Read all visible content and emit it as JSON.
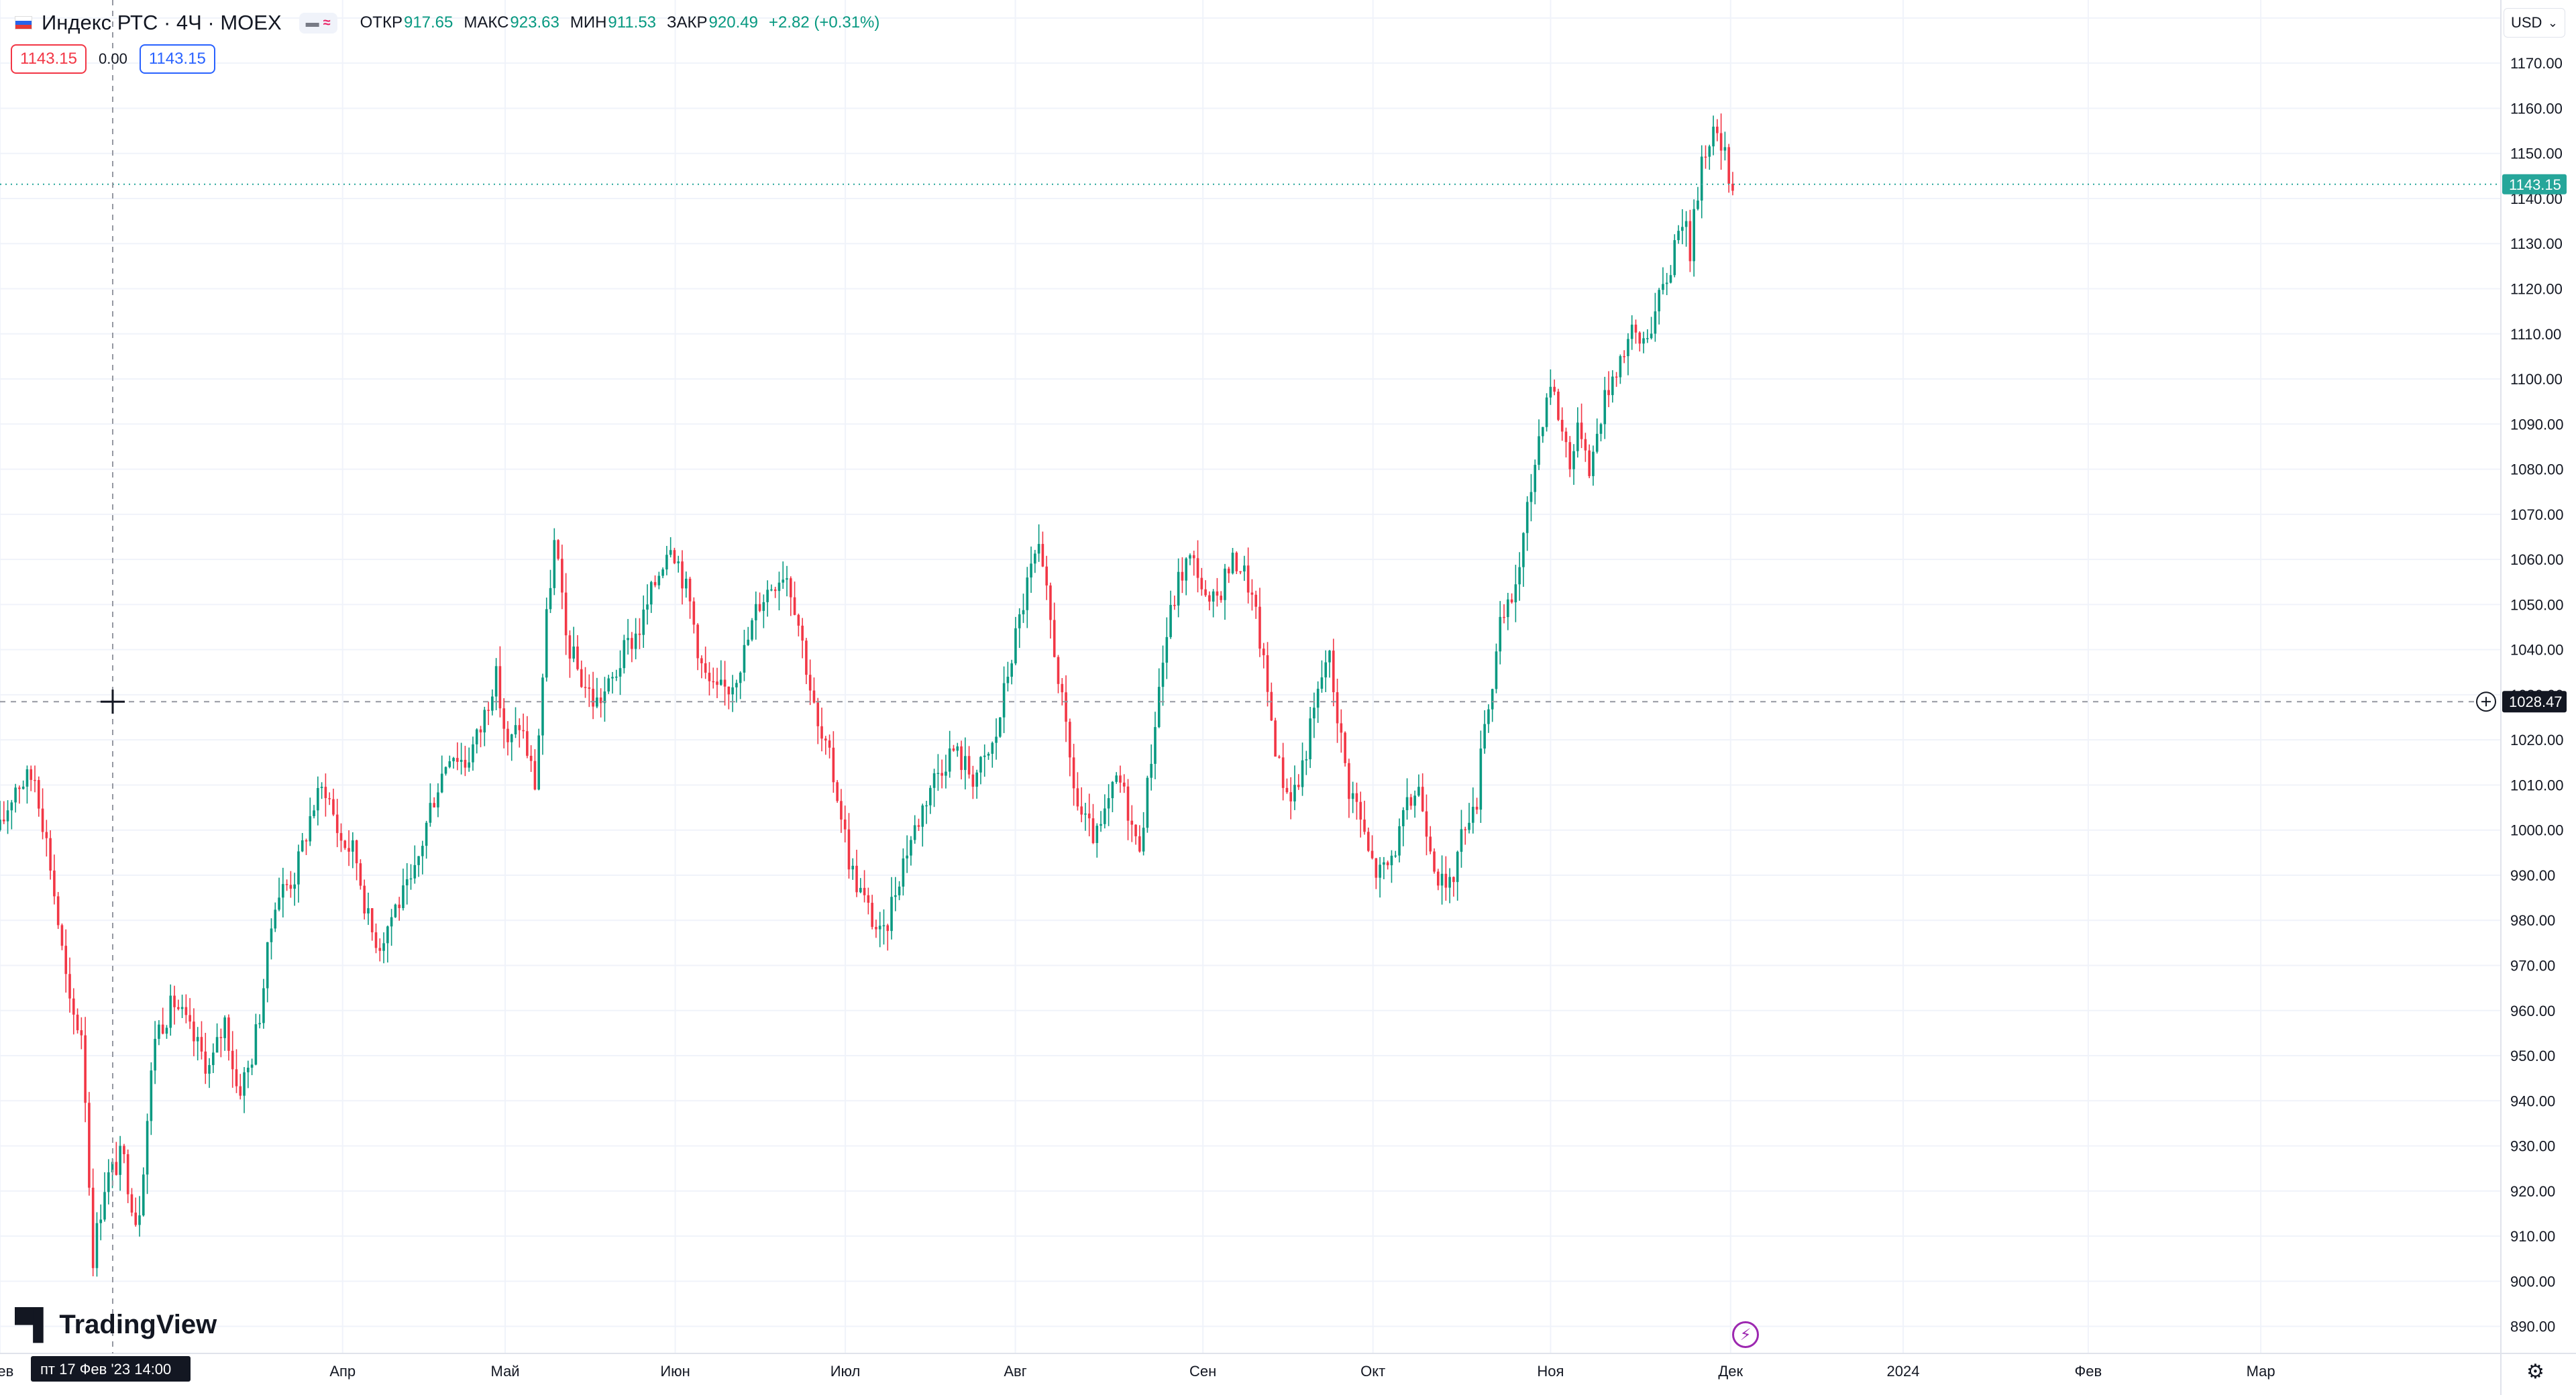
{
  "legend": {
    "symbol": "Индекс РТС · 4Ч · MOEX",
    "open_label": "ОТКР",
    "open": "917.65",
    "high_label": "МАКС",
    "high": "923.63",
    "low_label": "МИН",
    "low": "911.53",
    "close_label": "ЗАКР",
    "close": "920.49",
    "change": "+2.82 (+0.31%)"
  },
  "trade": {
    "sell": "1143.15",
    "spread": "0.00",
    "buy": "1143.15"
  },
  "currency": "USD",
  "brand": "TradingView",
  "crosshair": {
    "price_label": "1028.47",
    "time_label": "пт 17 Фев '23   14:00",
    "price": 1028.47
  },
  "last_price": {
    "label": "1143.15",
    "value": 1143.15
  },
  "colors": {
    "up": "#089981",
    "down": "#f23645",
    "grid": "#f0f3fa",
    "last": "#26a69a",
    "crosshair_label": "#131722"
  },
  "chart_data": {
    "type": "candlestick",
    "ylim": [
      884,
      1184
    ],
    "y_ticks": [
      890,
      900,
      910,
      920,
      930,
      940,
      950,
      960,
      970,
      980,
      990,
      1000,
      1010,
      1020,
      1030,
      1040,
      1050,
      1060,
      1070,
      1080,
      1090,
      1100,
      1110,
      1120,
      1130,
      1140,
      1150,
      1160,
      1170,
      1180
    ],
    "x_ticks": [
      {
        "label": "Фев",
        "frac": 0.0
      },
      {
        "label": "Апр",
        "frac": 0.137
      },
      {
        "label": "Май",
        "frac": 0.202
      },
      {
        "label": "Июн",
        "frac": 0.27
      },
      {
        "label": "Июл",
        "frac": 0.338
      },
      {
        "label": "Авг",
        "frac": 0.406
      },
      {
        "label": "Сен",
        "frac": 0.481
      },
      {
        "label": "Окт",
        "frac": 0.549
      },
      {
        "label": "Ноя",
        "frac": 0.62
      },
      {
        "label": "Дек",
        "frac": 0.692
      },
      {
        "label": "2024",
        "frac": 0.761
      },
      {
        "label": "Фев",
        "frac": 0.835
      },
      {
        "label": "Мар",
        "frac": 0.904
      }
    ],
    "path": [
      [
        0.0,
        1000
      ],
      [
        0.006,
        1010
      ],
      [
        0.014,
        1012
      ],
      [
        0.02,
        993
      ],
      [
        0.028,
        960
      ],
      [
        0.033,
        955
      ],
      [
        0.037,
        905
      ],
      [
        0.042,
        922
      ],
      [
        0.049,
        928
      ],
      [
        0.055,
        912
      ],
      [
        0.062,
        955
      ],
      [
        0.07,
        962
      ],
      [
        0.076,
        955
      ],
      [
        0.084,
        947
      ],
      [
        0.09,
        958
      ],
      [
        0.095,
        942
      ],
      [
        0.1,
        948
      ],
      [
        0.104,
        960
      ],
      [
        0.11,
        985
      ],
      [
        0.118,
        990
      ],
      [
        0.125,
        1005
      ],
      [
        0.13,
        1010
      ],
      [
        0.136,
        998
      ],
      [
        0.142,
        995
      ],
      [
        0.148,
        978
      ],
      [
        0.152,
        975
      ],
      [
        0.158,
        983
      ],
      [
        0.165,
        988
      ],
      [
        0.172,
        1005
      ],
      [
        0.18,
        1018
      ],
      [
        0.186,
        1015
      ],
      [
        0.192,
        1022
      ],
      [
        0.198,
        1035
      ],
      [
        0.203,
        1018
      ],
      [
        0.208,
        1024
      ],
      [
        0.214,
        1010
      ],
      [
        0.219,
        1050
      ],
      [
        0.222,
        1065
      ],
      [
        0.226,
        1043
      ],
      [
        0.232,
        1034
      ],
      [
        0.238,
        1028
      ],
      [
        0.244,
        1032
      ],
      [
        0.25,
        1040
      ],
      [
        0.256,
        1045
      ],
      [
        0.262,
        1055
      ],
      [
        0.268,
        1065
      ],
      [
        0.272,
        1058
      ],
      [
        0.276,
        1050
      ],
      [
        0.281,
        1035
      ],
      [
        0.286,
        1030
      ],
      [
        0.292,
        1032
      ],
      [
        0.298,
        1040
      ],
      [
        0.303,
        1050
      ],
      [
        0.309,
        1055
      ],
      [
        0.314,
        1058
      ],
      [
        0.318,
        1050
      ],
      [
        0.322,
        1038
      ],
      [
        0.327,
        1022
      ],
      [
        0.332,
        1015
      ],
      [
        0.336,
        1005
      ],
      [
        0.34,
        992
      ],
      [
        0.345,
        985
      ],
      [
        0.349,
        980
      ],
      [
        0.353,
        975
      ],
      [
        0.357,
        985
      ],
      [
        0.362,
        995
      ],
      [
        0.367,
        1002
      ],
      [
        0.372,
        1010
      ],
      [
        0.377,
        1015
      ],
      [
        0.381,
        1018
      ],
      [
        0.385,
        1015
      ],
      [
        0.389,
        1012
      ],
      [
        0.394,
        1015
      ],
      [
        0.398,
        1020
      ],
      [
        0.403,
        1035
      ],
      [
        0.407,
        1045
      ],
      [
        0.411,
        1055
      ],
      [
        0.415,
        1062
      ],
      [
        0.419,
        1050
      ],
      [
        0.423,
        1035
      ],
      [
        0.427,
        1018
      ],
      [
        0.431,
        1005
      ],
      [
        0.435,
        1000
      ],
      [
        0.439,
        998
      ],
      [
        0.443,
        1005
      ],
      [
        0.447,
        1012
      ],
      [
        0.451,
        1005
      ],
      [
        0.455,
        995
      ],
      [
        0.459,
        1010
      ],
      [
        0.463,
        1030
      ],
      [
        0.467,
        1045
      ],
      [
        0.471,
        1055
      ],
      [
        0.475,
        1060
      ],
      [
        0.479,
        1058
      ],
      [
        0.483,
        1048
      ],
      [
        0.487,
        1052
      ],
      [
        0.491,
        1058
      ],
      [
        0.495,
        1060
      ],
      [
        0.499,
        1055
      ],
      [
        0.503,
        1045
      ],
      [
        0.507,
        1030
      ],
      [
        0.511,
        1015
      ],
      [
        0.515,
        1008
      ],
      [
        0.519,
        1010
      ],
      [
        0.523,
        1020
      ],
      [
        0.527,
        1030
      ],
      [
        0.531,
        1040
      ],
      [
        0.535,
        1025
      ],
      [
        0.539,
        1010
      ],
      [
        0.543,
        1005
      ],
      [
        0.547,
        995
      ],
      [
        0.551,
        990
      ],
      [
        0.555,
        992
      ],
      [
        0.559,
        998
      ],
      [
        0.563,
        1005
      ],
      [
        0.567,
        1010
      ],
      [
        0.571,
        1000
      ],
      [
        0.575,
        990
      ],
      [
        0.579,
        985
      ],
      [
        0.583,
        995
      ],
      [
        0.587,
        1005
      ],
      [
        0.59,
        1002
      ],
      [
        0.592,
        1020
      ],
      [
        0.596,
        1030
      ],
      [
        0.6,
        1045
      ],
      [
        0.604,
        1050
      ],
      [
        0.608,
        1060
      ],
      [
        0.612,
        1075
      ],
      [
        0.616,
        1090
      ],
      [
        0.62,
        1100
      ],
      [
        0.624,
        1090
      ],
      [
        0.628,
        1082
      ],
      [
        0.632,
        1090
      ],
      [
        0.636,
        1080
      ],
      [
        0.64,
        1092
      ],
      [
        0.644,
        1100
      ],
      [
        0.648,
        1105
      ],
      [
        0.652,
        1110
      ],
      [
        0.656,
        1108
      ],
      [
        0.66,
        1112
      ],
      [
        0.664,
        1118
      ],
      [
        0.668,
        1125
      ],
      [
        0.672,
        1138
      ],
      [
        0.676,
        1128
      ],
      [
        0.68,
        1148
      ],
      [
        0.684,
        1155
      ],
      [
        0.688,
        1152
      ],
      [
        0.691,
        1146
      ],
      [
        0.694,
        1143
      ]
    ]
  }
}
